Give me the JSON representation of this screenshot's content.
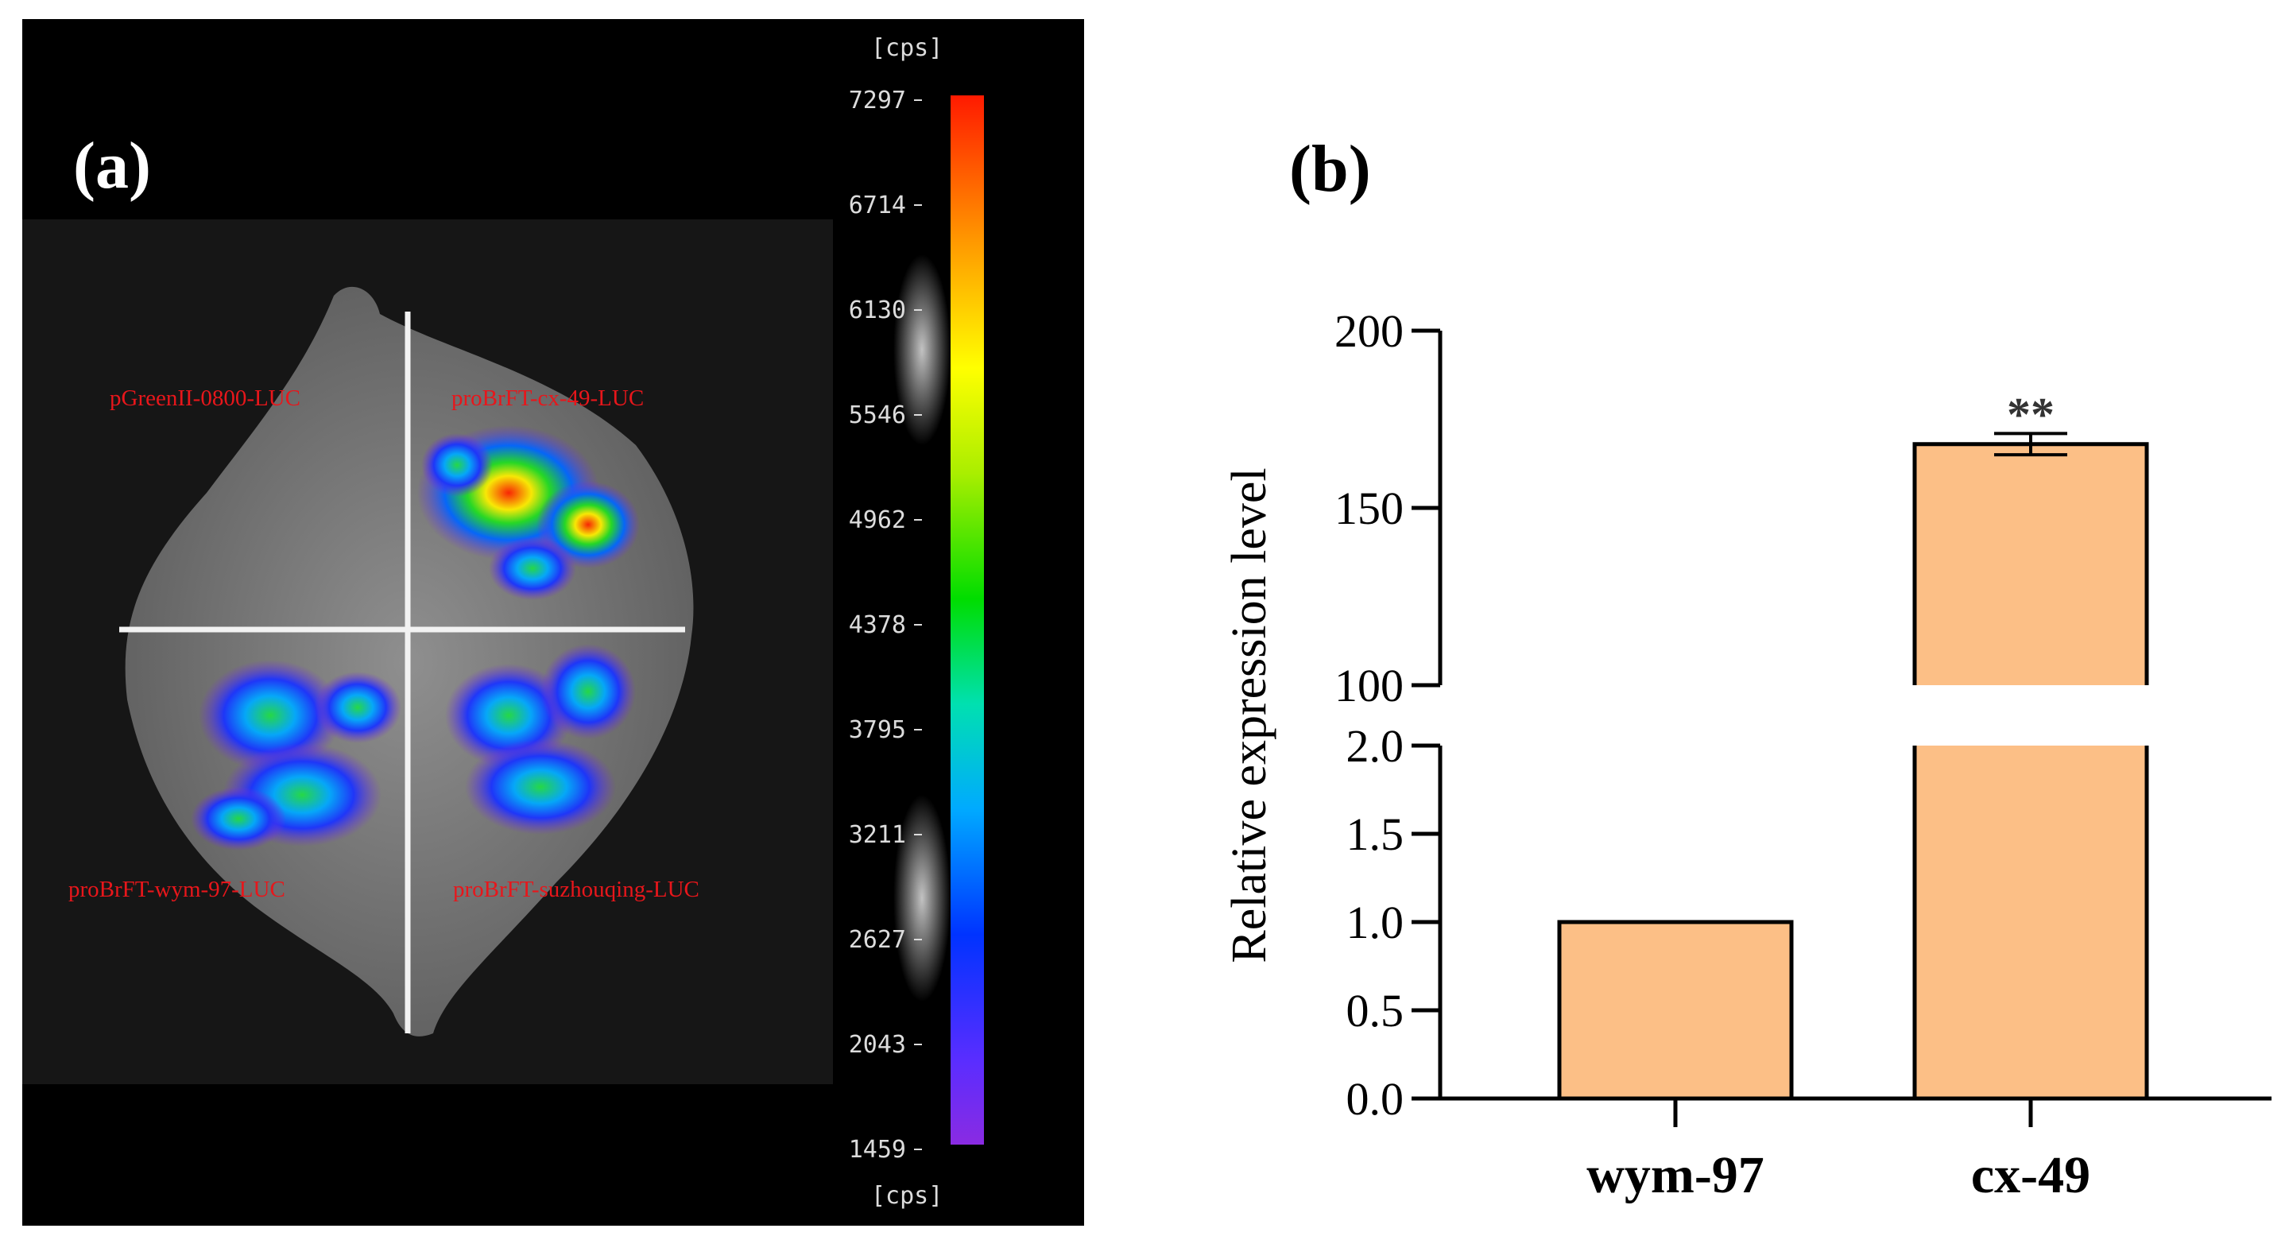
{
  "panel_a": {
    "label": "(a)",
    "unit_top": "[cps]",
    "unit_bottom": "[cps]",
    "scale_ticks": [
      "7297",
      "6714",
      "6130",
      "5546",
      "4962",
      "4378",
      "3795",
      "3211",
      "2627",
      "2043",
      "1459"
    ],
    "quadrant_labels": {
      "top_left": "pGreenII-0800-LUC",
      "top_right": "proBrFT-cx-49-LUC",
      "bottom_left": "proBrFT-wym-97-LUC",
      "bottom_right": "proBrFT-suzhouqing-LUC"
    },
    "colors": {
      "label_red": "#e8161b",
      "background": "#000000"
    }
  },
  "panel_b": {
    "label": "(b)",
    "significance": "**",
    "bar_color": "#fcbf86"
  },
  "chart_data": {
    "type": "bar",
    "title": "",
    "xlabel": "",
    "ylabel": "Relative expression level",
    "categories": [
      "wym-97",
      "cx-49"
    ],
    "values": [
      1.0,
      168
    ],
    "error": [
      0,
      3
    ],
    "broken_axis": {
      "lower_range": [
        0,
        2.0
      ],
      "upper_range": [
        100,
        200
      ],
      "lower_ticks": [
        "0.0",
        "0.5",
        "1.0",
        "1.5",
        "2.0"
      ],
      "upper_ticks": [
        "100",
        "150",
        "200"
      ]
    },
    "annotations": [
      {
        "category": "cx-49",
        "text": "**"
      }
    ]
  }
}
